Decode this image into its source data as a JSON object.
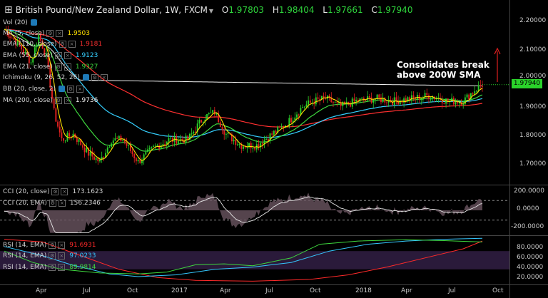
{
  "header": {
    "symbol": "British Pound/New Zealand Dollar, 1W, FXCM",
    "open_label": "O",
    "open": "1.97803",
    "high_label": "H",
    "high": "1.98404",
    "low_label": "L",
    "low": "1.97661",
    "close_label": "C",
    "close": "1.97940"
  },
  "indicators": {
    "vol": {
      "label": "Vol (20)"
    },
    "ma5": {
      "label": "MA (5, close)",
      "value": "1.9503",
      "color": "#ffe100"
    },
    "ema110": {
      "label": "EMA (110, close)",
      "value": "1.9181",
      "color": "#ff3030"
    },
    "ema55": {
      "label": "EMA (55, close)",
      "value": "1.9123",
      "color": "#35d0ff"
    },
    "ema21": {
      "label": "EMA (21, close)",
      "value": "1.9327",
      "color": "#3ed83e"
    },
    "ichimoku": {
      "label": "Ichimoku (9, 26, 52, 26)"
    },
    "bb": {
      "label": "BB (20, close, 2)"
    },
    "ma200": {
      "label": "MA (200, close)",
      "value": "1.9736",
      "color": "#f0f0f0"
    },
    "cci1": {
      "label": "CCI (20, close)",
      "value": "173.1623"
    },
    "cci2": {
      "label": "CCI (20, EMA)",
      "value": "156.2346"
    },
    "rsi1": {
      "label": "RSI (14, EMA)",
      "value": "91.6931",
      "color": "#ff2a2a"
    },
    "rsi2": {
      "label": "RSI (14, EMA)",
      "value": "97.0233",
      "color": "#35c8ff"
    },
    "rsi3": {
      "label": "RSI (14, EMA)",
      "value": "89.9814",
      "color": "#3ed83e"
    }
  },
  "annotation": "Consolidates break\nabove 200W SMA",
  "colors": {
    "up": "#2ad22a",
    "down": "#e32020",
    "background": "#000000"
  },
  "chart_data": {
    "type": "candlestick",
    "ylim": [
      1.62,
      2.25
    ],
    "y_ticks": [
      "2.20000",
      "2.10000",
      "2.00000",
      "1.90000",
      "1.80000",
      "1.70000"
    ],
    "x_ticks": [
      "Apr",
      "Jul",
      "Oct",
      "2017",
      "Apr",
      "Jul",
      "Oct",
      "2018",
      "Apr",
      "Jul",
      "Oct"
    ],
    "last_price": "1.97940",
    "cci": {
      "ylim": [
        -240,
        240
      ],
      "ticks": [
        "200.0000",
        "0.0000",
        "-200.0000"
      ],
      "levels": [
        100,
        -100
      ]
    },
    "rsi": {
      "ylim": [
        0,
        100
      ],
      "ticks": [
        "80.0000",
        "60.0000",
        "40.0000",
        "20.0000"
      ],
      "band": [
        30,
        70
      ]
    }
  }
}
